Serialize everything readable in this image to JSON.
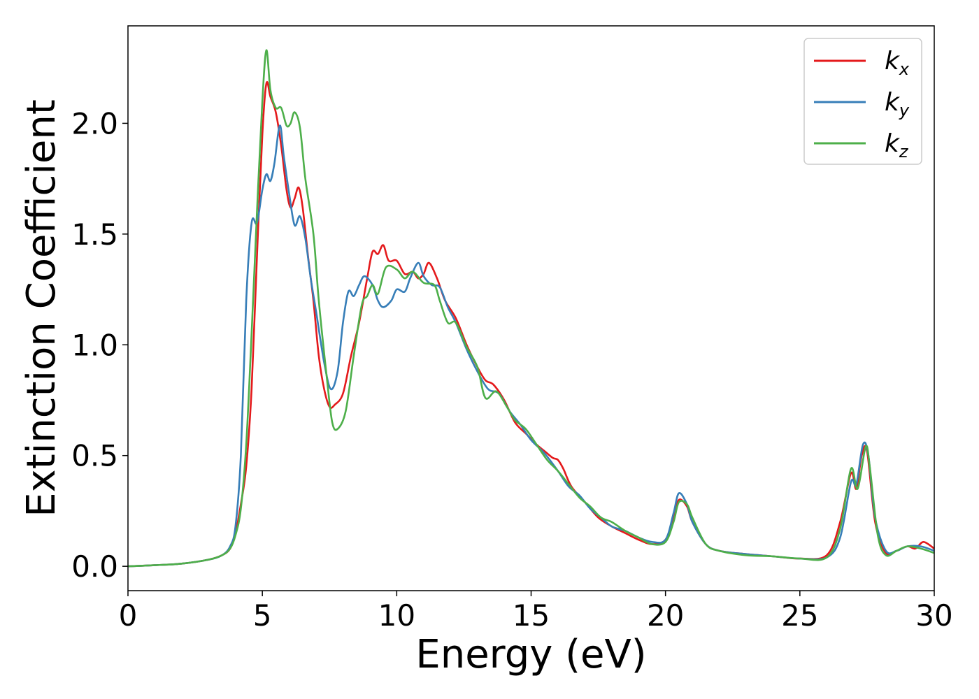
{
  "chart_data": {
    "type": "line",
    "xlabel": "Energy (eV)",
    "ylabel": "Extinction Coefficient",
    "xlim": [
      0,
      30
    ],
    "ylim": [
      -0.11,
      2.44
    ],
    "xticks": [
      0,
      5,
      10,
      15,
      20,
      25,
      30
    ],
    "xtick_labels": [
      "0",
      "5",
      "10",
      "15",
      "20",
      "25",
      "30"
    ],
    "yticks": [
      0.0,
      0.5,
      1.0,
      1.5,
      2.0
    ],
    "ytick_labels": [
      "0.0",
      "0.5",
      "1.0",
      "1.5",
      "2.0"
    ],
    "grid": false,
    "legend_position": "top-right",
    "series": [
      {
        "name": "k_x",
        "label_main": "k",
        "label_sub": "x",
        "color": "#e41a1c",
        "points": [
          [
            0,
            0.0
          ],
          [
            1,
            0.005
          ],
          [
            2,
            0.012
          ],
          [
            3,
            0.03
          ],
          [
            3.5,
            0.05
          ],
          [
            3.8,
            0.08
          ],
          [
            4.0,
            0.15
          ],
          [
            4.2,
            0.28
          ],
          [
            4.4,
            0.45
          ],
          [
            4.6,
            0.8
          ],
          [
            4.8,
            1.4
          ],
          [
            5.0,
            1.95
          ],
          [
            5.15,
            2.18
          ],
          [
            5.3,
            2.12
          ],
          [
            5.5,
            2.05
          ],
          [
            5.7,
            1.9
          ],
          [
            5.9,
            1.7
          ],
          [
            6.05,
            1.62
          ],
          [
            6.2,
            1.66
          ],
          [
            6.35,
            1.71
          ],
          [
            6.5,
            1.62
          ],
          [
            6.7,
            1.4
          ],
          [
            6.9,
            1.2
          ],
          [
            7.1,
            0.95
          ],
          [
            7.3,
            0.8
          ],
          [
            7.5,
            0.72
          ],
          [
            7.7,
            0.73
          ],
          [
            8.0,
            0.78
          ],
          [
            8.3,
            0.95
          ],
          [
            8.6,
            1.1
          ],
          [
            8.9,
            1.3
          ],
          [
            9.1,
            1.42
          ],
          [
            9.3,
            1.41
          ],
          [
            9.5,
            1.45
          ],
          [
            9.7,
            1.38
          ],
          [
            10.0,
            1.38
          ],
          [
            10.3,
            1.32
          ],
          [
            10.6,
            1.33
          ],
          [
            10.8,
            1.3
          ],
          [
            11.0,
            1.32
          ],
          [
            11.2,
            1.37
          ],
          [
            11.5,
            1.3
          ],
          [
            11.8,
            1.2
          ],
          [
            12.2,
            1.12
          ],
          [
            12.6,
            1.0
          ],
          [
            13.0,
            0.9
          ],
          [
            13.3,
            0.84
          ],
          [
            13.6,
            0.82
          ],
          [
            14.0,
            0.75
          ],
          [
            14.4,
            0.65
          ],
          [
            14.8,
            0.6
          ],
          [
            15.2,
            0.55
          ],
          [
            15.5,
            0.52
          ],
          [
            15.8,
            0.49
          ],
          [
            16.0,
            0.48
          ],
          [
            16.2,
            0.44
          ],
          [
            16.5,
            0.36
          ],
          [
            17.0,
            0.29
          ],
          [
            17.5,
            0.22
          ],
          [
            18.0,
            0.18
          ],
          [
            18.5,
            0.15
          ],
          [
            19.0,
            0.12
          ],
          [
            19.5,
            0.1
          ],
          [
            20.0,
            0.12
          ],
          [
            20.3,
            0.22
          ],
          [
            20.5,
            0.3
          ],
          [
            20.8,
            0.27
          ],
          [
            21.0,
            0.2
          ],
          [
            21.5,
            0.1
          ],
          [
            22.0,
            0.07
          ],
          [
            23.0,
            0.055
          ],
          [
            24.0,
            0.045
          ],
          [
            25.0,
            0.035
          ],
          [
            26.0,
            0.05
          ],
          [
            26.5,
            0.2
          ],
          [
            26.9,
            0.42
          ],
          [
            27.1,
            0.35
          ],
          [
            27.3,
            0.5
          ],
          [
            27.5,
            0.52
          ],
          [
            27.8,
            0.2
          ],
          [
            28.2,
            0.06
          ],
          [
            28.6,
            0.07
          ],
          [
            29.0,
            0.09
          ],
          [
            29.3,
            0.08
          ],
          [
            29.6,
            0.11
          ],
          [
            30.0,
            0.08
          ]
        ]
      },
      {
        "name": "k_y",
        "label_main": "k",
        "label_sub": "y",
        "color": "#377eb8",
        "points": [
          [
            0,
            0.0
          ],
          [
            1,
            0.005
          ],
          [
            2,
            0.012
          ],
          [
            3,
            0.03
          ],
          [
            3.5,
            0.05
          ],
          [
            3.8,
            0.09
          ],
          [
            4.0,
            0.18
          ],
          [
            4.2,
            0.5
          ],
          [
            4.4,
            1.2
          ],
          [
            4.6,
            1.55
          ],
          [
            4.8,
            1.55
          ],
          [
            5.0,
            1.7
          ],
          [
            5.15,
            1.77
          ],
          [
            5.3,
            1.74
          ],
          [
            5.45,
            1.82
          ],
          [
            5.65,
            1.99
          ],
          [
            5.8,
            1.85
          ],
          [
            6.0,
            1.68
          ],
          [
            6.2,
            1.54
          ],
          [
            6.4,
            1.58
          ],
          [
            6.6,
            1.48
          ],
          [
            6.8,
            1.3
          ],
          [
            7.0,
            1.15
          ],
          [
            7.3,
            0.92
          ],
          [
            7.55,
            0.8
          ],
          [
            7.8,
            0.88
          ],
          [
            8.0,
            1.1
          ],
          [
            8.2,
            1.24
          ],
          [
            8.4,
            1.22
          ],
          [
            8.6,
            1.27
          ],
          [
            8.8,
            1.31
          ],
          [
            9.1,
            1.27
          ],
          [
            9.3,
            1.2
          ],
          [
            9.5,
            1.17
          ],
          [
            9.8,
            1.2
          ],
          [
            10.0,
            1.25
          ],
          [
            10.3,
            1.24
          ],
          [
            10.5,
            1.3
          ],
          [
            10.8,
            1.37
          ],
          [
            11.0,
            1.31
          ],
          [
            11.3,
            1.27
          ],
          [
            11.6,
            1.26
          ],
          [
            11.9,
            1.17
          ],
          [
            12.2,
            1.1
          ],
          [
            12.6,
            0.98
          ],
          [
            13.0,
            0.88
          ],
          [
            13.4,
            0.8
          ],
          [
            13.8,
            0.78
          ],
          [
            14.2,
            0.7
          ],
          [
            14.6,
            0.64
          ],
          [
            15.0,
            0.57
          ],
          [
            15.5,
            0.51
          ],
          [
            16.0,
            0.43
          ],
          [
            16.4,
            0.36
          ],
          [
            16.8,
            0.32
          ],
          [
            17.2,
            0.26
          ],
          [
            17.6,
            0.22
          ],
          [
            18.0,
            0.18
          ],
          [
            18.5,
            0.16
          ],
          [
            19.0,
            0.13
          ],
          [
            19.5,
            0.11
          ],
          [
            20.0,
            0.12
          ],
          [
            20.3,
            0.24
          ],
          [
            20.5,
            0.33
          ],
          [
            20.8,
            0.28
          ],
          [
            21.0,
            0.2
          ],
          [
            21.5,
            0.1
          ],
          [
            22.0,
            0.07
          ],
          [
            23.0,
            0.055
          ],
          [
            24.0,
            0.045
          ],
          [
            25.0,
            0.035
          ],
          [
            26.0,
            0.04
          ],
          [
            26.5,
            0.13
          ],
          [
            26.9,
            0.38
          ],
          [
            27.1,
            0.37
          ],
          [
            27.35,
            0.55
          ],
          [
            27.55,
            0.5
          ],
          [
            27.8,
            0.22
          ],
          [
            28.2,
            0.07
          ],
          [
            28.6,
            0.07
          ],
          [
            29.0,
            0.09
          ],
          [
            29.5,
            0.09
          ],
          [
            30.0,
            0.07
          ]
        ]
      },
      {
        "name": "k_z",
        "label_main": "k",
        "label_sub": "z",
        "color": "#4daf4a",
        "points": [
          [
            0,
            0.0
          ],
          [
            1,
            0.005
          ],
          [
            2,
            0.012
          ],
          [
            3,
            0.03
          ],
          [
            3.5,
            0.05
          ],
          [
            3.8,
            0.08
          ],
          [
            4.0,
            0.14
          ],
          [
            4.2,
            0.26
          ],
          [
            4.4,
            0.55
          ],
          [
            4.6,
            1.05
          ],
          [
            4.8,
            1.6
          ],
          [
            5.0,
            2.1
          ],
          [
            5.15,
            2.33
          ],
          [
            5.3,
            2.15
          ],
          [
            5.5,
            2.07
          ],
          [
            5.7,
            2.07
          ],
          [
            5.9,
            1.99
          ],
          [
            6.05,
            2.0
          ],
          [
            6.2,
            2.05
          ],
          [
            6.4,
            1.98
          ],
          [
            6.6,
            1.75
          ],
          [
            6.9,
            1.5
          ],
          [
            7.1,
            1.2
          ],
          [
            7.4,
            0.85
          ],
          [
            7.6,
            0.65
          ],
          [
            7.8,
            0.62
          ],
          [
            8.1,
            0.7
          ],
          [
            8.4,
            0.95
          ],
          [
            8.7,
            1.18
          ],
          [
            8.9,
            1.22
          ],
          [
            9.1,
            1.27
          ],
          [
            9.3,
            1.23
          ],
          [
            9.6,
            1.35
          ],
          [
            10.0,
            1.34
          ],
          [
            10.3,
            1.3
          ],
          [
            10.6,
            1.33
          ],
          [
            11.0,
            1.28
          ],
          [
            11.4,
            1.27
          ],
          [
            11.6,
            1.2
          ],
          [
            11.9,
            1.1
          ],
          [
            12.2,
            1.1
          ],
          [
            12.6,
            0.99
          ],
          [
            13.0,
            0.9
          ],
          [
            13.3,
            0.76
          ],
          [
            13.7,
            0.79
          ],
          [
            14.1,
            0.72
          ],
          [
            14.4,
            0.66
          ],
          [
            14.8,
            0.62
          ],
          [
            15.2,
            0.55
          ],
          [
            15.6,
            0.48
          ],
          [
            16.0,
            0.43
          ],
          [
            16.4,
            0.37
          ],
          [
            16.8,
            0.31
          ],
          [
            17.2,
            0.27
          ],
          [
            17.6,
            0.22
          ],
          [
            18.0,
            0.2
          ],
          [
            18.5,
            0.16
          ],
          [
            19.0,
            0.13
          ],
          [
            19.5,
            0.1
          ],
          [
            20.0,
            0.11
          ],
          [
            20.3,
            0.2
          ],
          [
            20.5,
            0.29
          ],
          [
            20.8,
            0.28
          ],
          [
            21.0,
            0.22
          ],
          [
            21.5,
            0.1
          ],
          [
            22.0,
            0.07
          ],
          [
            23.0,
            0.05
          ],
          [
            24.0,
            0.045
          ],
          [
            25.0,
            0.035
          ],
          [
            26.0,
            0.04
          ],
          [
            26.5,
            0.17
          ],
          [
            26.9,
            0.44
          ],
          [
            27.15,
            0.35
          ],
          [
            27.45,
            0.54
          ],
          [
            27.6,
            0.45
          ],
          [
            27.9,
            0.14
          ],
          [
            28.2,
            0.05
          ],
          [
            28.6,
            0.07
          ],
          [
            29.0,
            0.09
          ],
          [
            29.5,
            0.08
          ],
          [
            30.0,
            0.06
          ]
        ]
      }
    ]
  }
}
